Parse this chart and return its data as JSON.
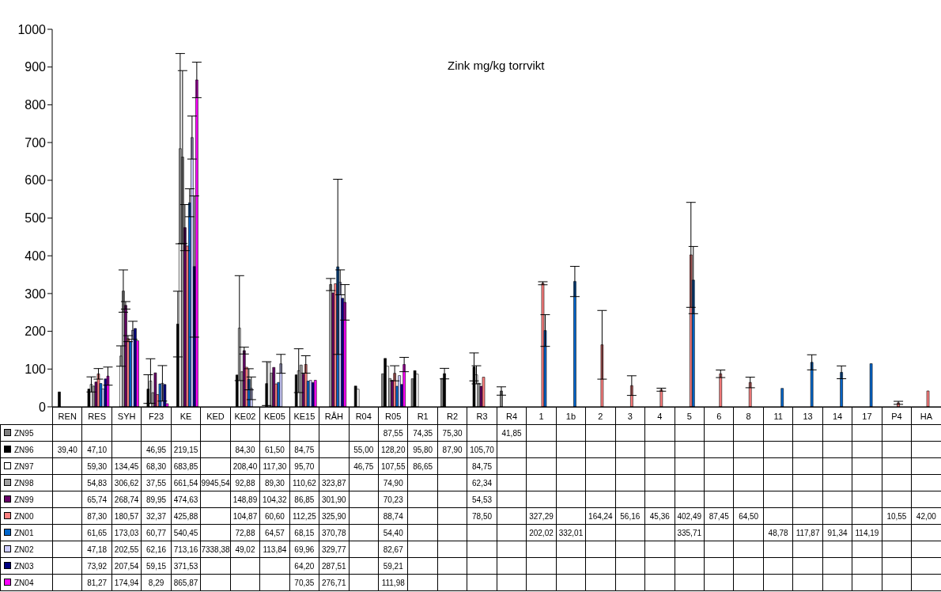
{
  "chart_data": {
    "type": "bar",
    "title": "Zink mg/kg torrvikt",
    "categories": [
      "REN",
      "RES",
      "SYH",
      "F23",
      "KE",
      "KED",
      "KE02",
      "KE05",
      "KE15",
      "RÅH",
      "R04",
      "R05",
      "R1",
      "R2",
      "R3",
      "R4",
      "1",
      "1b",
      "2",
      "3",
      "4",
      "5",
      "6",
      "8",
      "11",
      "13",
      "14",
      "17",
      "P4",
      "HA"
    ],
    "ylim": [
      0,
      1000
    ],
    "yticks": [
      0,
      100,
      200,
      300,
      400,
      500,
      600,
      700,
      800,
      900,
      1000
    ],
    "grid": false,
    "legend": "bottom left",
    "series": [
      {
        "name": "ZN95",
        "color": "#808080",
        "values": [
          null,
          null,
          null,
          null,
          null,
          null,
          null,
          null,
          null,
          null,
          null,
          87.55,
          74.35,
          75.3,
          null,
          41.85,
          null,
          null,
          null,
          null,
          null,
          null,
          null,
          null,
          null,
          null,
          null,
          null,
          null,
          null
        ],
        "value_labels": [
          null,
          null,
          null,
          null,
          null,
          null,
          null,
          null,
          null,
          null,
          null,
          "87,55",
          "74,35",
          "75,30",
          null,
          "41,85",
          null,
          null,
          null,
          null,
          null,
          null,
          null,
          null,
          null,
          null,
          null,
          null,
          null,
          null
        ],
        "errors": [
          null,
          null,
          null,
          null,
          null,
          null,
          null,
          null,
          null,
          null,
          null,
          null,
          null,
          null,
          null,
          11,
          null,
          null,
          null,
          null,
          null,
          null,
          null,
          null,
          null,
          null,
          null,
          null,
          null,
          null
        ]
      },
      {
        "name": "ZN96",
        "color": "#000000",
        "values": [
          39.4,
          47.1,
          null,
          46.95,
          219.15,
          null,
          84.3,
          61.5,
          84.75,
          null,
          55.0,
          128.2,
          95.8,
          87.9,
          105.7,
          null,
          null,
          null,
          null,
          null,
          null,
          null,
          null,
          null,
          null,
          null,
          null,
          null,
          null,
          null
        ],
        "value_labels": [
          "39,40",
          "47,10",
          null,
          "46,95",
          "219,15",
          null,
          "84,30",
          "61,50",
          "84,75",
          null,
          "55,00",
          "128,20",
          "95,80",
          "87,90",
          "105,70",
          null,
          null,
          null,
          null,
          null,
          null,
          null,
          null,
          null,
          null,
          null,
          null,
          null,
          null,
          null
        ],
        "errors": [
          null,
          null,
          null,
          38,
          87,
          null,
          null,
          58,
          null,
          null,
          null,
          null,
          null,
          14,
          37,
          null,
          null,
          null,
          null,
          null,
          null,
          null,
          null,
          null,
          null,
          null,
          null,
          null,
          null,
          null
        ]
      },
      {
        "name": "ZN97",
        "color": "#ffffff",
        "values": [
          null,
          59.3,
          134.45,
          68.3,
          683.85,
          null,
          208.4,
          117.3,
          95.7,
          null,
          46.75,
          107.55,
          86.65,
          null,
          84.75,
          null,
          null,
          null,
          null,
          null,
          null,
          null,
          null,
          null,
          null,
          null,
          null,
          null,
          null,
          null
        ],
        "value_labels": [
          null,
          "59,30",
          "134,45",
          "68,30",
          "683,85",
          null,
          "208,40",
          "117,30",
          "95,70",
          null,
          "46,75",
          "107,55",
          "86,65",
          null,
          "84,75",
          null,
          null,
          null,
          null,
          null,
          null,
          null,
          null,
          null,
          null,
          null,
          null,
          null,
          null,
          null
        ],
        "errors": [
          null,
          20,
          27,
          59,
          252,
          null,
          139,
          null,
          58,
          null,
          null,
          null,
          null,
          null,
          24,
          null,
          null,
          null,
          null,
          null,
          null,
          null,
          null,
          null,
          null,
          null,
          null,
          null,
          null,
          null
        ]
      },
      {
        "name": "ZN98",
        "color": "#a0a0a0",
        "values": [
          null,
          54.83,
          306.62,
          37.55,
          661.54,
          null,
          92.88,
          89.3,
          110.62,
          323.87,
          null,
          74.9,
          null,
          null,
          62.34,
          null,
          null,
          null,
          null,
          null,
          null,
          null,
          null,
          null,
          null,
          null,
          null,
          null,
          null,
          null
        ],
        "value_labels": [
          null,
          "54,83",
          "306,62",
          "37,55",
          "661,54",
          "9945,54",
          "92,88",
          "89,30",
          "110,62",
          "323,87",
          null,
          "74,90",
          null,
          null,
          "62,34",
          null,
          null,
          null,
          null,
          null,
          null,
          null,
          null,
          null,
          null,
          null,
          null,
          null,
          null,
          null
        ],
        "errors": [
          null,
          null,
          56,
          null,
          229,
          null,
          null,
          null,
          null,
          16,
          null,
          null,
          null,
          null,
          null,
          null,
          null,
          null,
          null,
          null,
          null,
          null,
          null,
          null,
          null,
          null,
          null,
          null,
          null,
          null
        ]
      },
      {
        "name": "ZN99",
        "color": "#660066",
        "values": [
          null,
          65.74,
          268.74,
          89.95,
          474.63,
          null,
          148.89,
          104.32,
          86.85,
          301.9,
          null,
          70.23,
          null,
          null,
          54.53,
          null,
          null,
          null,
          null,
          null,
          null,
          null,
          null,
          null,
          null,
          null,
          null,
          null,
          null,
          null
        ],
        "value_labels": [
          null,
          "65,74",
          "268,74",
          "89,95",
          "474,63",
          null,
          "148,89",
          "104,32",
          "86,85",
          "301,90",
          null,
          "70,23",
          null,
          null,
          "54,53",
          null,
          null,
          null,
          null,
          null,
          null,
          null,
          null,
          null,
          null,
          null,
          null,
          null,
          null,
          null
        ],
        "errors": [
          null,
          null,
          10,
          null,
          61,
          null,
          9,
          null,
          null,
          null,
          null,
          null,
          null,
          null,
          null,
          null,
          null,
          null,
          null,
          null,
          null,
          null,
          null,
          null,
          null,
          null,
          null,
          null,
          null,
          null
        ]
      },
      {
        "name": "ZN00",
        "color": "#ff8080",
        "values": [
          null,
          87.3,
          180.57,
          32.37,
          425.88,
          null,
          104.87,
          60.6,
          112.25,
          325.9,
          null,
          88.74,
          null,
          null,
          78.5,
          null,
          327.29,
          null,
          164.24,
          56.16,
          45.36,
          402.49,
          87.45,
          64.5,
          null,
          null,
          null,
          null,
          10.55,
          42.0
        ],
        "value_labels": [
          null,
          "87,30",
          "180,57",
          "32,37",
          "425,88",
          null,
          "104,87",
          "60,60",
          "112,25",
          "325,90",
          null,
          "88,74",
          null,
          null,
          "78,50",
          null,
          "327,29",
          null,
          "164,24",
          "56,16",
          "45,36",
          "402,49",
          "87,45",
          "64,50",
          null,
          null,
          null,
          null,
          "10,55",
          "42,00"
        ],
        "errors": [
          null,
          14,
          8,
          null,
          null,
          null,
          null,
          null,
          23,
          null,
          null,
          20,
          null,
          null,
          null,
          null,
          4,
          null,
          91,
          26,
          4,
          139,
          10,
          14,
          null,
          null,
          null,
          null,
          4,
          null
        ]
      },
      {
        "name": "ZN01",
        "color": "#0066cc",
        "values": [
          null,
          61.65,
          173.03,
          60.77,
          540.45,
          null,
          72.88,
          64.57,
          68.15,
          370.78,
          null,
          54.4,
          null,
          null,
          null,
          null,
          202.02,
          332.01,
          null,
          null,
          null,
          335.71,
          null,
          null,
          48.78,
          117.87,
          91.34,
          114.19,
          null,
          null
        ],
        "value_labels": [
          null,
          "61,65",
          "173,03",
          "60,77",
          "540,45",
          null,
          "72,88",
          "64,57",
          "68,15",
          "370,78",
          null,
          "54,40",
          null,
          null,
          null,
          null,
          "202,02",
          "332,01",
          null,
          null,
          null,
          "335,71",
          null,
          null,
          "48,78",
          "117,87",
          "91,34",
          "114,19",
          null,
          null
        ],
        "errors": [
          null,
          null,
          null,
          null,
          37,
          null,
          28,
          null,
          null,
          232,
          null,
          null,
          null,
          null,
          null,
          null,
          42,
          40,
          null,
          null,
          null,
          89,
          null,
          null,
          null,
          20,
          17,
          null,
          null,
          null
        ]
      },
      {
        "name": "ZN02",
        "color": "#ccccff",
        "values": [
          null,
          47.18,
          202.55,
          62.16,
          713.16,
          null,
          49.02,
          113.84,
          69.96,
          329.77,
          null,
          82.67,
          null,
          null,
          null,
          null,
          null,
          null,
          null,
          null,
          null,
          null,
          null,
          null,
          null,
          null,
          null,
          null,
          null,
          null
        ],
        "value_labels": [
          null,
          "47,18",
          "202,55",
          "62,16",
          "713,16",
          "7338,38",
          "49,02",
          "113,84",
          "69,96",
          "329,77",
          null,
          "82,67",
          null,
          null,
          null,
          null,
          null,
          null,
          null,
          null,
          null,
          null,
          null,
          null,
          null,
          null,
          null,
          null,
          null,
          null
        ],
        "errors": [
          null,
          null,
          24,
          47,
          57,
          null,
          30,
          25,
          null,
          33,
          null,
          null,
          null,
          null,
          null,
          null,
          null,
          null,
          null,
          null,
          null,
          null,
          null,
          null,
          null,
          null,
          null,
          null,
          null,
          null
        ]
      },
      {
        "name": "ZN03",
        "color": "#000080",
        "values": [
          null,
          73.92,
          207.54,
          59.15,
          371.53,
          null,
          null,
          null,
          64.2,
          287.51,
          null,
          59.21,
          null,
          null,
          null,
          null,
          null,
          null,
          null,
          null,
          null,
          null,
          null,
          null,
          null,
          null,
          null,
          null,
          null,
          null
        ],
        "value_labels": [
          null,
          "73,92",
          "207,54",
          "59,15",
          "371,53",
          null,
          null,
          null,
          "64,20",
          "287,51",
          null,
          "59,21",
          null,
          null,
          null,
          null,
          null,
          null,
          null,
          null,
          null,
          null,
          null,
          null,
          null,
          null,
          null,
          null,
          null,
          null
        ],
        "errors": [
          null,
          null,
          null,
          null,
          187,
          null,
          null,
          null,
          null,
          null,
          null,
          null,
          null,
          null,
          null,
          null,
          null,
          null,
          null,
          null,
          null,
          null,
          null,
          null,
          null,
          null,
          null,
          null,
          null,
          null
        ]
      },
      {
        "name": "ZN04",
        "color": "#ff00ff",
        "values": [
          null,
          81.27,
          174.94,
          8.29,
          865.87,
          null,
          null,
          null,
          70.35,
          276.71,
          null,
          111.98,
          null,
          null,
          null,
          null,
          null,
          null,
          null,
          null,
          null,
          null,
          null,
          null,
          null,
          null,
          null,
          null,
          null,
          null
        ],
        "value_labels": [
          null,
          "81,27",
          "174,94",
          "8,29",
          "865,87",
          null,
          null,
          null,
          "70,35",
          "276,71",
          null,
          "111,98",
          null,
          null,
          null,
          null,
          null,
          null,
          null,
          null,
          null,
          null,
          null,
          null,
          null,
          null,
          null,
          null,
          null,
          null
        ],
        "errors": [
          null,
          24,
          null,
          null,
          47,
          null,
          null,
          null,
          null,
          47,
          null,
          19,
          null,
          null,
          null,
          null,
          null,
          null,
          null,
          null,
          null,
          null,
          null,
          null,
          null,
          null,
          null,
          null,
          null,
          null
        ]
      }
    ]
  }
}
